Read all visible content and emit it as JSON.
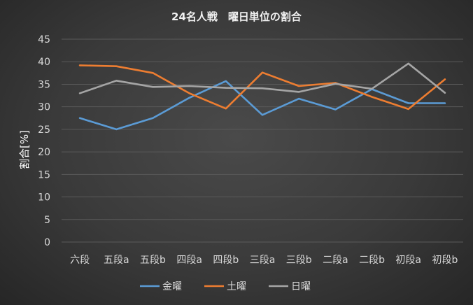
{
  "chart_data": {
    "type": "line",
    "title": "24名人戦　曜日単位の割合",
    "xlabel": "",
    "ylabel": "割合[%]",
    "ylim": [
      0,
      45
    ],
    "yticks": [
      0,
      5,
      10,
      15,
      20,
      25,
      30,
      35,
      40,
      45
    ],
    "grid": true,
    "legend_position": "bottom",
    "categories": [
      "六段",
      "五段a",
      "五段b",
      "四段a",
      "四段b",
      "三段a",
      "三段b",
      "二段a",
      "二段b",
      "初段a",
      "初段b"
    ],
    "series": [
      {
        "name": "金曜",
        "color": "#5b9bd5",
        "values": [
          27.5,
          25.0,
          27.5,
          32.0,
          35.7,
          28.2,
          31.8,
          29.4,
          33.9,
          30.8,
          30.8
        ]
      },
      {
        "name": "土曜",
        "color": "#ed7d31",
        "values": [
          39.2,
          39.0,
          37.5,
          33.0,
          29.6,
          37.6,
          34.6,
          35.3,
          32.2,
          29.5,
          36.1
        ]
      },
      {
        "name": "日曜",
        "color": "#a5a5a5",
        "values": [
          33.0,
          35.8,
          34.4,
          34.6,
          34.2,
          34.1,
          33.3,
          35.1,
          34.0,
          39.6,
          33.1
        ]
      }
    ]
  }
}
